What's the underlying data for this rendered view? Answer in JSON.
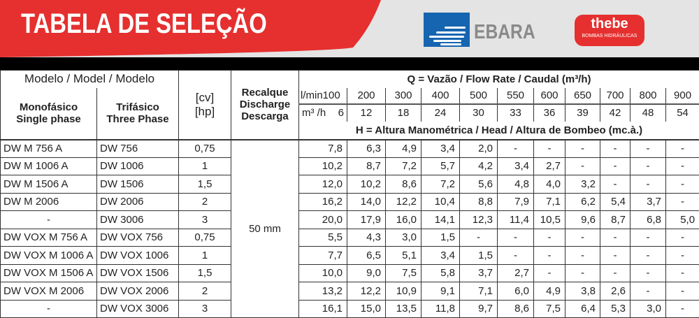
{
  "header": {
    "title": "TABELA DE SELEÇÃO",
    "logo_ebara": "EBARA",
    "logo_thebe": "thebe",
    "logo_thebe_sub": "BOMBAS HIDRÁULICAS",
    "accent": "#e5302f"
  },
  "table": {
    "model_header": "Modelo / Model / Modelo",
    "mono_header": [
      "Monofásico",
      "Single phase"
    ],
    "tri_header": [
      "Trifásico",
      "Three Phase"
    ],
    "power_header": [
      "[cv]",
      "[hp]"
    ],
    "discharge_header": [
      "Recalque",
      "Discharge",
      "Descarga"
    ],
    "flow_title": "Q = Vazão / Flow Rate / Caudal  (m³/h)",
    "lmin_label": "l/min",
    "m3h_label": "m³ /h",
    "lmin": [
      "100",
      "200",
      "300",
      "400",
      "500",
      "550",
      "600",
      "650",
      "700",
      "800",
      "900"
    ],
    "m3h": [
      "6",
      "12",
      "18",
      "24",
      "30",
      "33",
      "36",
      "39",
      "42",
      "48",
      "54"
    ],
    "head_title": "H = Altura Manométrica / Head / Altura de Bombeo (mc.à.)",
    "discharge_value": "50 mm",
    "rows": [
      {
        "mono": "DW M 756 A",
        "tri": "DW 756",
        "cv": "0,75",
        "h": [
          "7,8",
          "6,3",
          "4,9",
          "3,4",
          "2,0",
          "-",
          "-",
          "-",
          "-",
          "-",
          "-"
        ]
      },
      {
        "mono": "DW M 1006 A",
        "tri": "DW 1006",
        "cv": "1",
        "h": [
          "10,2",
          "8,7",
          "7,2",
          "5,7",
          "4,2",
          "3,4",
          "2,7",
          "-",
          "-",
          "-",
          "-"
        ]
      },
      {
        "mono": "DW M 1506 A",
        "tri": "DW 1506",
        "cv": "1,5",
        "h": [
          "12,0",
          "10,2",
          "8,6",
          "7,2",
          "5,6",
          "4,8",
          "4,0",
          "3,2",
          "-",
          "-",
          "-"
        ]
      },
      {
        "mono": "DW M 2006",
        "tri": "DW 2006",
        "cv": "2",
        "h": [
          "16,2",
          "14,0",
          "12,2",
          "10,4",
          "8,8",
          "7,9",
          "7,1",
          "6,2",
          "5,4",
          "3,7",
          "-"
        ]
      },
      {
        "mono": "-",
        "tri": "DW 3006",
        "cv": "3",
        "h": [
          "20,0",
          "17,9",
          "16,0",
          "14,1",
          "12,3",
          "11,4",
          "10,5",
          "9,6",
          "8,7",
          "6,8",
          "5,0"
        ]
      },
      {
        "mono": "DW VOX M 756 A",
        "tri": "DW VOX 756",
        "cv": "0,75",
        "h": [
          "5,5",
          "4,3",
          "3,0",
          "1,5",
          "-",
          "-",
          "-",
          "-",
          "-",
          "-",
          "-"
        ]
      },
      {
        "mono": "DW VOX M 1006 A",
        "tri": "DW VOX 1006",
        "cv": "1",
        "h": [
          "7,7",
          "6,5",
          "5,1",
          "3,4",
          "1,5",
          "-",
          "-",
          "-",
          "-",
          "-",
          "-"
        ]
      },
      {
        "mono": "DW VOX M 1506 A",
        "tri": "DW VOX 1506",
        "cv": "1,5",
        "h": [
          "10,0",
          "9,0",
          "7,5",
          "5,8",
          "3,7",
          "2,7",
          "-",
          "-",
          "-",
          "-",
          "-"
        ]
      },
      {
        "mono": "DW VOX M 2006",
        "tri": "DW VOX 2006",
        "cv": "2",
        "h": [
          "13,2",
          "12,2",
          "10,9",
          "9,1",
          "7,1",
          "6,0",
          "4,9",
          "3,8",
          "2,6",
          "-",
          "-"
        ]
      },
      {
        "mono": "-",
        "tri": "DW VOX 3006",
        "cv": "3",
        "h": [
          "16,1",
          "15,0",
          "13,5",
          "11,8",
          "9,7",
          "8,6",
          "7,5",
          "6,4",
          "5,3",
          "3,0",
          "-"
        ]
      }
    ]
  }
}
